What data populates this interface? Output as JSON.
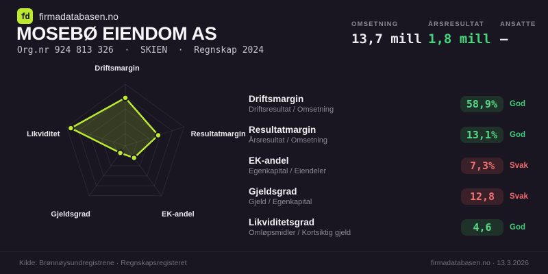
{
  "brand": {
    "logo_text": "fd",
    "name": "firmadatabasen.no"
  },
  "header": {
    "title": "MOSEBØ EIENDOM AS",
    "subtitle": "Org.nr 924 813 326  ·  SKIEN  ·  Regnskap 2024"
  },
  "stats": [
    {
      "label": "OMSETNING",
      "value": "13,7 mill",
      "color": "#ebeaef"
    },
    {
      "label": "ÅRSRESULTAT",
      "value": "1,8 mill",
      "color": "#42d77d"
    },
    {
      "label": "ANSATTE",
      "value": "–",
      "color": "#ebeaef"
    }
  ],
  "chart_data": {
    "type": "radar",
    "axes": [
      "Driftsmargin",
      "Resultatmargin",
      "EK-andel",
      "Gjeldsgrad",
      "Likviditet"
    ],
    "values": [
      0.78,
      0.56,
      0.24,
      0.14,
      0.93
    ],
    "axis_values": [
      "58,9%",
      "13,1%",
      "7,3%",
      "12,8",
      "4,6"
    ],
    "max": 1,
    "rings": 5,
    "stroke": "#bdeb2f",
    "fill": "rgba(189,235,47,0.18)",
    "grid": "rgba(255,255,255,0.08)",
    "point_fill": "#bdeb2f",
    "point_border": "#191521"
  },
  "metrics": [
    {
      "name": "Driftsmargin",
      "formula": "Driftsresultat / Omsetning",
      "value": "58,9%",
      "status": "God",
      "tone": "good"
    },
    {
      "name": "Resultatmargin",
      "formula": "Årsresultat / Omsetning",
      "value": "13,1%",
      "status": "God",
      "tone": "good"
    },
    {
      "name": "EK-andel",
      "formula": "Egenkapital / Eiendeler",
      "value": "7,3%",
      "status": "Svak",
      "tone": "bad"
    },
    {
      "name": "Gjeldsgrad",
      "formula": "Gjeld / Egenkapital",
      "value": "12,8",
      "status": "Svak",
      "tone": "bad"
    },
    {
      "name": "Likviditetsgrad",
      "formula": "Omløpsmidler / Kortsiktig gjeld",
      "value": "4,6",
      "status": "God",
      "tone": "good"
    }
  ],
  "footer": {
    "source": "Kilde: Brønnøysundregistrene · Regnskapsregisteret",
    "meta": "firmadatabasen.no · 13.3.2026"
  }
}
